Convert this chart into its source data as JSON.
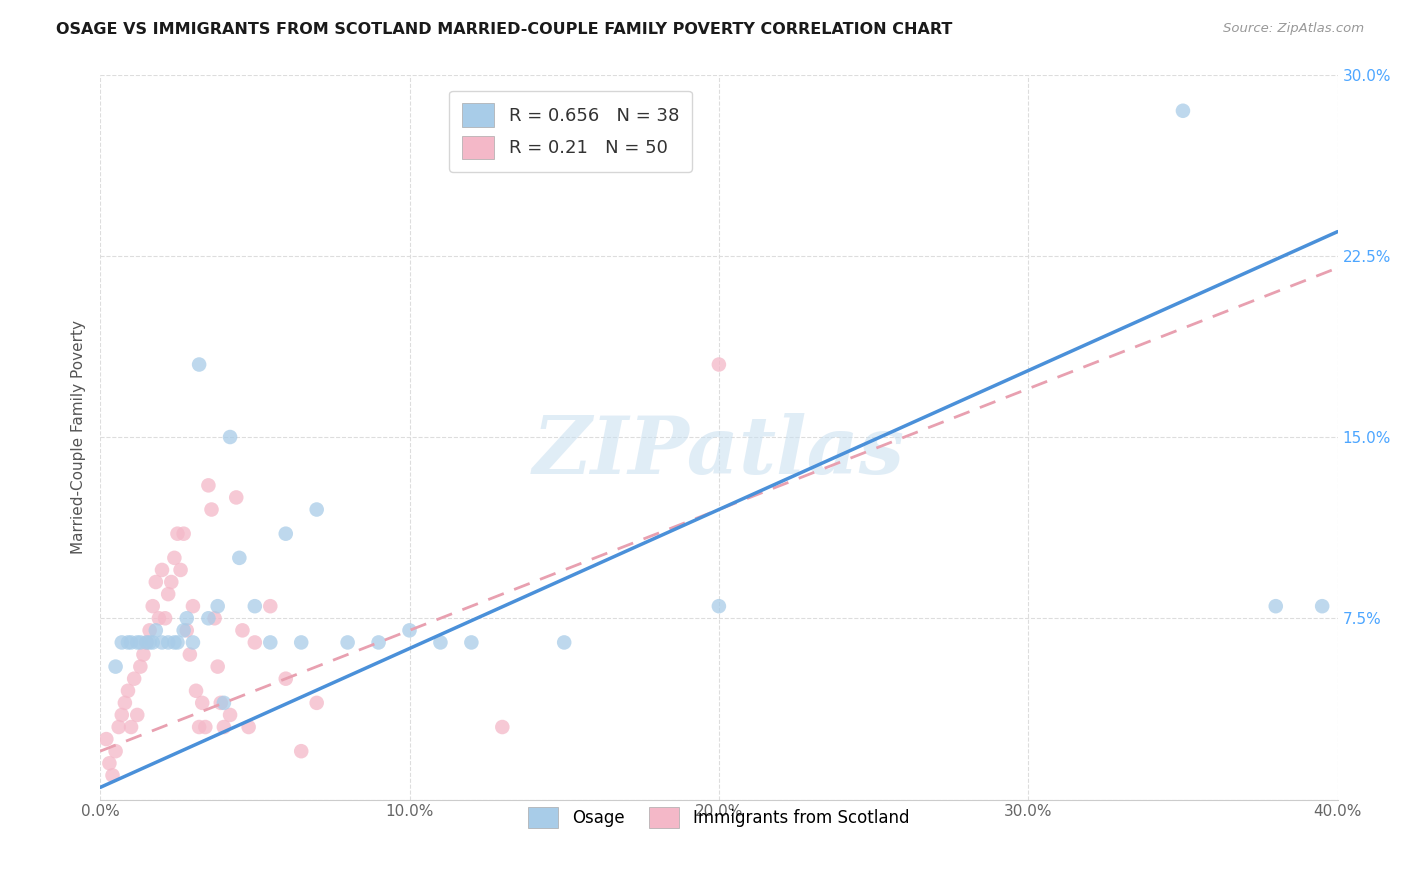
{
  "title": "OSAGE VS IMMIGRANTS FROM SCOTLAND MARRIED-COUPLE FAMILY POVERTY CORRELATION CHART",
  "source": "Source: ZipAtlas.com",
  "ylabel": "Married-Couple Family Poverty",
  "xlim": [
    0.0,
    0.4
  ],
  "ylim": [
    0.0,
    0.3
  ],
  "xticks": [
    0.0,
    0.1,
    0.2,
    0.3,
    0.4
  ],
  "yticks": [
    0.0,
    0.075,
    0.15,
    0.225,
    0.3
  ],
  "xticklabels": [
    "0.0%",
    "10.0%",
    "20.0%",
    "30.0%",
    "40.0%"
  ],
  "yticklabels": [
    "",
    "7.5%",
    "15.0%",
    "22.5%",
    "30.0%"
  ],
  "blue_R": 0.656,
  "blue_N": 38,
  "pink_R": 0.21,
  "pink_N": 50,
  "blue_color": "#a8cce8",
  "pink_color": "#f4b8c8",
  "blue_line_color": "#4a90d9",
  "pink_line_color": "#e8a0b0",
  "legend_label_blue": "Osage",
  "legend_label_pink": "Immigrants from Scotland",
  "watermark": "ZIPatlas",
  "background_color": "#ffffff",
  "blue_line_x0": 0.0,
  "blue_line_y0": 0.005,
  "blue_line_x1": 0.4,
  "blue_line_y1": 0.235,
  "pink_line_x0": 0.0,
  "pink_line_y0": 0.02,
  "pink_line_x1": 0.4,
  "pink_line_y1": 0.22,
  "osage_x": [
    0.005,
    0.007,
    0.009,
    0.01,
    0.012,
    0.013,
    0.015,
    0.016,
    0.017,
    0.018,
    0.02,
    0.022,
    0.024,
    0.025,
    0.027,
    0.028,
    0.03,
    0.032,
    0.035,
    0.038,
    0.04,
    0.042,
    0.045,
    0.05,
    0.055,
    0.06,
    0.065,
    0.07,
    0.08,
    0.09,
    0.1,
    0.11,
    0.12,
    0.15,
    0.2,
    0.35,
    0.38,
    0.395
  ],
  "osage_y": [
    0.055,
    0.065,
    0.065,
    0.065,
    0.065,
    0.065,
    0.065,
    0.065,
    0.065,
    0.07,
    0.065,
    0.065,
    0.065,
    0.065,
    0.07,
    0.075,
    0.065,
    0.18,
    0.075,
    0.08,
    0.04,
    0.15,
    0.1,
    0.08,
    0.065,
    0.11,
    0.065,
    0.12,
    0.065,
    0.065,
    0.07,
    0.065,
    0.065,
    0.065,
    0.08,
    0.285,
    0.08,
    0.08
  ],
  "scotland_x": [
    0.002,
    0.003,
    0.004,
    0.005,
    0.006,
    0.007,
    0.008,
    0.009,
    0.01,
    0.011,
    0.012,
    0.013,
    0.014,
    0.015,
    0.016,
    0.017,
    0.018,
    0.019,
    0.02,
    0.021,
    0.022,
    0.023,
    0.024,
    0.025,
    0.026,
    0.027,
    0.028,
    0.029,
    0.03,
    0.031,
    0.032,
    0.033,
    0.034,
    0.035,
    0.036,
    0.037,
    0.038,
    0.039,
    0.04,
    0.042,
    0.044,
    0.046,
    0.048,
    0.05,
    0.055,
    0.06,
    0.065,
    0.07,
    0.13,
    0.2
  ],
  "scotland_y": [
    0.025,
    0.015,
    0.01,
    0.02,
    0.03,
    0.035,
    0.04,
    0.045,
    0.03,
    0.05,
    0.035,
    0.055,
    0.06,
    0.065,
    0.07,
    0.08,
    0.09,
    0.075,
    0.095,
    0.075,
    0.085,
    0.09,
    0.1,
    0.11,
    0.095,
    0.11,
    0.07,
    0.06,
    0.08,
    0.045,
    0.03,
    0.04,
    0.03,
    0.13,
    0.12,
    0.075,
    0.055,
    0.04,
    0.03,
    0.035,
    0.125,
    0.07,
    0.03,
    0.065,
    0.08,
    0.05,
    0.02,
    0.04,
    0.03,
    0.18
  ]
}
